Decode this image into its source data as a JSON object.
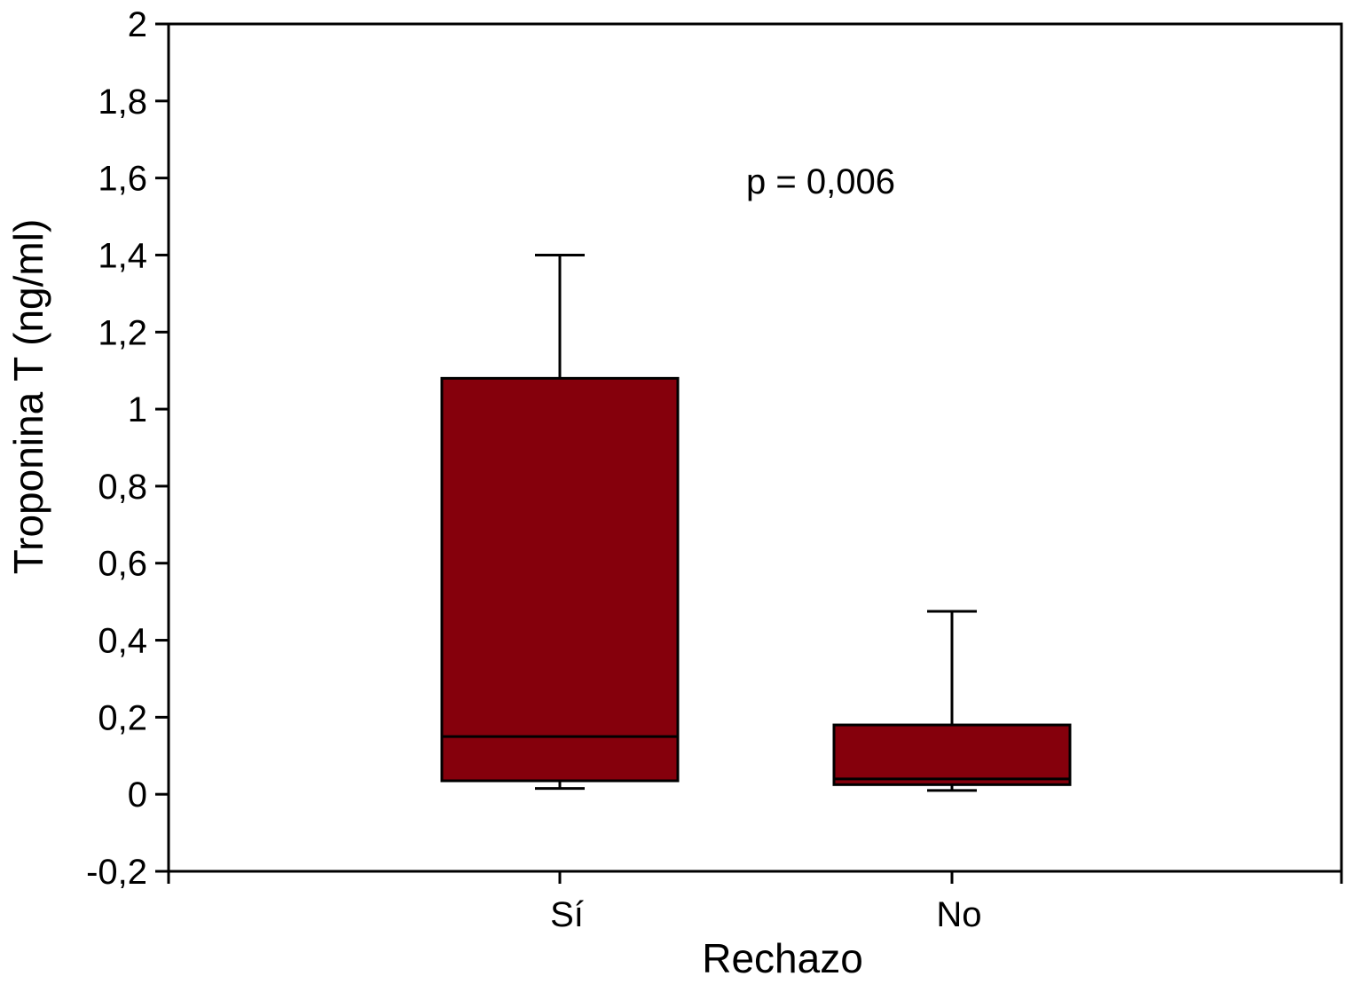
{
  "chart_data": {
    "type": "box",
    "title": "",
    "xlabel": "Rechazo",
    "ylabel": "Troponina T (ng/ml)",
    "ylim": [
      -0.2,
      2
    ],
    "yticks": [
      -0.2,
      0,
      0.2,
      0.4,
      0.6,
      0.8,
      1,
      1.2,
      1.4,
      1.6,
      1.8,
      2
    ],
    "ytick_labels": [
      "-0,2",
      "0",
      "0,2",
      "0,4",
      "0,6",
      "0,8",
      "1",
      "1,2",
      "1,4",
      "1,6",
      "1,8",
      "2"
    ],
    "categories": [
      "Sí",
      "No"
    ],
    "boxes": [
      {
        "category": "Sí",
        "whisker_low": 0.015,
        "q1": 0.035,
        "median": 0.15,
        "q3": 1.08,
        "whisker_high": 1.4
      },
      {
        "category": "No",
        "whisker_low": 0.01,
        "q1": 0.025,
        "median": 0.04,
        "q3": 0.18,
        "whisker_high": 0.475
      }
    ],
    "annotation": "p = 0,006",
    "box_color": "#85000c",
    "grid": false,
    "legend": "none"
  }
}
